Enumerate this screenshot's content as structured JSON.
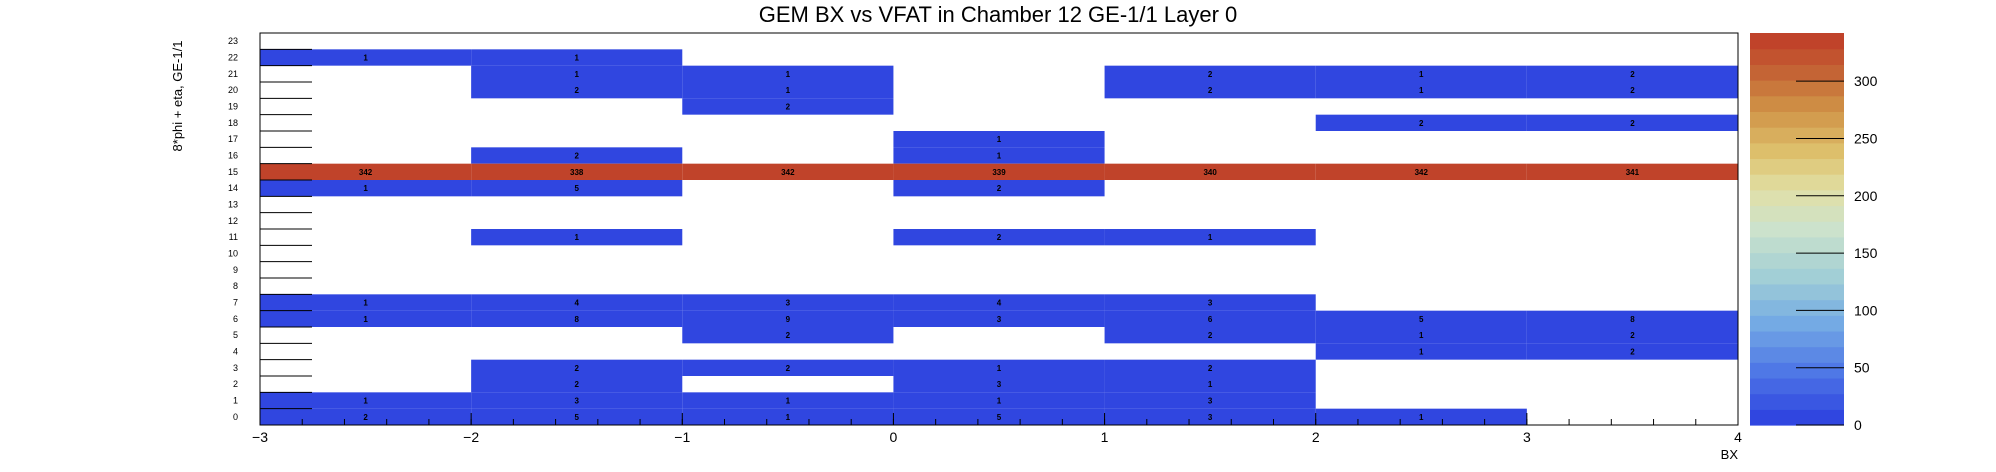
{
  "chart_data": {
    "type": "heatmap",
    "title": "GEM BX vs VFAT in Chamber 12 GE-1/1 Layer 0",
    "xlabel": "BX",
    "ylabel": "8*phi + eta, GE-1/1",
    "xlim": [
      -3,
      4
    ],
    "ylim": [
      0,
      24
    ],
    "x_ticks": [
      "−3",
      "−2",
      "−1",
      "0",
      "1",
      "2",
      "3",
      "4"
    ],
    "x_tick_values": [
      -3,
      -2,
      -1,
      0,
      1,
      2,
      3,
      4
    ],
    "y_ticks": [
      "0",
      "1",
      "2",
      "3",
      "4",
      "5",
      "6",
      "7",
      "8",
      "9",
      "10",
      "11",
      "12",
      "13",
      "14",
      "15",
      "16",
      "17",
      "18",
      "19",
      "20",
      "21",
      "22",
      "23"
    ],
    "x_bin_edges": [
      -3,
      -2,
      -1,
      0,
      1,
      2,
      3,
      4
    ],
    "zlim": [
      0,
      342
    ],
    "z_ticks": [
      "0",
      "50",
      "100",
      "150",
      "200",
      "250",
      "300"
    ],
    "z_tick_values": [
      0,
      50,
      100,
      150,
      200,
      250,
      300
    ],
    "colors": {
      "low": "#3046e0",
      "high": "#c0432a"
    },
    "cells": [
      {
        "x": -3,
        "y": 22,
        "v": 1
      },
      {
        "x": -2,
        "y": 22,
        "v": 1
      },
      {
        "x": -2,
        "y": 21,
        "v": 1
      },
      {
        "x": -1,
        "y": 21,
        "v": 1
      },
      {
        "x": 1,
        "y": 21,
        "v": 2
      },
      {
        "x": 2,
        "y": 21,
        "v": 1
      },
      {
        "x": 3,
        "y": 21,
        "v": 2
      },
      {
        "x": -2,
        "y": 20,
        "v": 2
      },
      {
        "x": -1,
        "y": 20,
        "v": 1
      },
      {
        "x": 1,
        "y": 20,
        "v": 2
      },
      {
        "x": 2,
        "y": 20,
        "v": 1
      },
      {
        "x": 3,
        "y": 20,
        "v": 2
      },
      {
        "x": -1,
        "y": 19,
        "v": 2
      },
      {
        "x": 2,
        "y": 18,
        "v": 2
      },
      {
        "x": 3,
        "y": 18,
        "v": 2
      },
      {
        "x": 0,
        "y": 17,
        "v": 1
      },
      {
        "x": -2,
        "y": 16,
        "v": 2
      },
      {
        "x": 0,
        "y": 16,
        "v": 1
      },
      {
        "x": -3,
        "y": 15,
        "v": 342
      },
      {
        "x": -2,
        "y": 15,
        "v": 338
      },
      {
        "x": -1,
        "y": 15,
        "v": 342
      },
      {
        "x": 0,
        "y": 15,
        "v": 339
      },
      {
        "x": 1,
        "y": 15,
        "v": 340
      },
      {
        "x": 2,
        "y": 15,
        "v": 342
      },
      {
        "x": 3,
        "y": 15,
        "v": 341
      },
      {
        "x": -3,
        "y": 14,
        "v": 1
      },
      {
        "x": -2,
        "y": 14,
        "v": 5
      },
      {
        "x": 0,
        "y": 14,
        "v": 2
      },
      {
        "x": -2,
        "y": 11,
        "v": 1
      },
      {
        "x": 0,
        "y": 11,
        "v": 2
      },
      {
        "x": 1,
        "y": 11,
        "v": 1
      },
      {
        "x": -3,
        "y": 7,
        "v": 1
      },
      {
        "x": -2,
        "y": 7,
        "v": 4
      },
      {
        "x": -1,
        "y": 7,
        "v": 3
      },
      {
        "x": 0,
        "y": 7,
        "v": 4
      },
      {
        "x": 1,
        "y": 7,
        "v": 3
      },
      {
        "x": -3,
        "y": 6,
        "v": 1
      },
      {
        "x": -2,
        "y": 6,
        "v": 8
      },
      {
        "x": -1,
        "y": 6,
        "v": 9
      },
      {
        "x": 0,
        "y": 6,
        "v": 3
      },
      {
        "x": 1,
        "y": 6,
        "v": 6
      },
      {
        "x": 2,
        "y": 6,
        "v": 5
      },
      {
        "x": 3,
        "y": 6,
        "v": 8
      },
      {
        "x": -1,
        "y": 5,
        "v": 2
      },
      {
        "x": 1,
        "y": 5,
        "v": 2
      },
      {
        "x": 2,
        "y": 5,
        "v": 1
      },
      {
        "x": 3,
        "y": 5,
        "v": 2
      },
      {
        "x": 2,
        "y": 4,
        "v": 1
      },
      {
        "x": 3,
        "y": 4,
        "v": 2
      },
      {
        "x": -2,
        "y": 3,
        "v": 2
      },
      {
        "x": -1,
        "y": 3,
        "v": 2
      },
      {
        "x": 0,
        "y": 3,
        "v": 1
      },
      {
        "x": 1,
        "y": 3,
        "v": 2
      },
      {
        "x": -2,
        "y": 2,
        "v": 2
      },
      {
        "x": 0,
        "y": 2,
        "v": 3
      },
      {
        "x": 1,
        "y": 2,
        "v": 1
      },
      {
        "x": -3,
        "y": 1,
        "v": 1
      },
      {
        "x": -2,
        "y": 1,
        "v": 3
      },
      {
        "x": -1,
        "y": 1,
        "v": 1
      },
      {
        "x": 0,
        "y": 1,
        "v": 1
      },
      {
        "x": 1,
        "y": 1,
        "v": 3
      },
      {
        "x": -3,
        "y": 0,
        "v": 2
      },
      {
        "x": -2,
        "y": 0,
        "v": 5
      },
      {
        "x": -1,
        "y": 0,
        "v": 1
      },
      {
        "x": 0,
        "y": 0,
        "v": 5
      },
      {
        "x": 1,
        "y": 0,
        "v": 3
      },
      {
        "x": 2,
        "y": 0,
        "v": 1
      }
    ],
    "grid": false,
    "legend": "color bar at right"
  }
}
